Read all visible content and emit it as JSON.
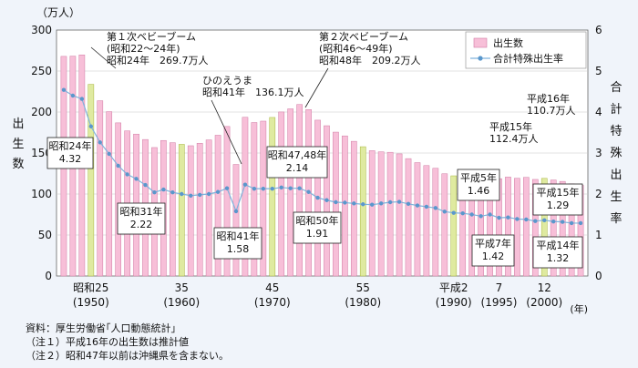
{
  "chart_data": {
    "type": "bar+line",
    "unit_left": "（万人）",
    "ylabel_left": "出生数",
    "ylabel_right": "合計特殊出生率",
    "ylim_left": [
      0,
      300
    ],
    "ylim_right": [
      0,
      6
    ],
    "yticks_left": [
      "0",
      "50",
      "100",
      "150",
      "200",
      "250",
      "300"
    ],
    "yticks_right": [
      "0",
      "1",
      "2",
      "3",
      "4",
      "5",
      "6"
    ],
    "x_unit": "(年)",
    "xtick_labels": [
      {
        "index": 3,
        "top": "昭和25",
        "bottom": "(1950)"
      },
      {
        "index": 13,
        "top": "35",
        "bottom": "(1960)"
      },
      {
        "index": 23,
        "top": "45",
        "bottom": "(1970)"
      },
      {
        "index": 33,
        "top": "55",
        "bottom": "(1980)"
      },
      {
        "index": 43,
        "top": "平成2",
        "bottom": "(1990)"
      },
      {
        "index": 48,
        "top": "7",
        "bottom": "(1995)"
      },
      {
        "index": 53,
        "top": "12",
        "bottom": "(2000)"
      }
    ],
    "x": [
      1947,
      1948,
      1949,
      1950,
      1951,
      1952,
      1953,
      1954,
      1955,
      1956,
      1957,
      1958,
      1959,
      1960,
      1961,
      1962,
      1963,
      1964,
      1965,
      1966,
      1967,
      1968,
      1969,
      1970,
      1971,
      1972,
      1973,
      1974,
      1975,
      1976,
      1977,
      1978,
      1979,
      1980,
      1981,
      1982,
      1983,
      1984,
      1985,
      1986,
      1987,
      1988,
      1989,
      1990,
      1991,
      1992,
      1993,
      1994,
      1995,
      1996,
      1997,
      1998,
      1999,
      2000,
      2001,
      2002,
      2003,
      2004
    ],
    "series": [
      {
        "name": "出生数",
        "kind": "bar",
        "color": "#f7bfd8",
        "decade_color": "#dfeaa0",
        "values": [
          267.9,
          268.2,
          269.7,
          233.8,
          213.8,
          200.5,
          186.8,
          177.0,
          173.1,
          166.5,
          156.7,
          165.3,
          162.6,
          160.6,
          158.9,
          161.9,
          166.0,
          171.7,
          182.4,
          136.1,
          193.6,
          187.2,
          188.9,
          193.4,
          200.1,
          203.9,
          209.2,
          203.0,
          190.1,
          183.3,
          175.5,
          170.9,
          164.3,
          157.7,
          152.9,
          151.5,
          150.9,
          149.0,
          143.2,
          138.3,
          134.7,
          131.4,
          124.7,
          122.2,
          122.3,
          120.9,
          118.8,
          123.8,
          118.7,
          120.7,
          119.2,
          120.3,
          117.8,
          119.1,
          117.1,
          115.4,
          112.4,
          110.7
        ],
        "decade_indices": [
          3,
          13,
          23,
          33,
          43,
          53
        ]
      },
      {
        "name": "合計特殊出生率",
        "kind": "line",
        "color": "#7fb2dc",
        "values": [
          4.54,
          4.4,
          4.32,
          3.65,
          3.26,
          2.98,
          2.69,
          2.48,
          2.37,
          2.22,
          2.04,
          2.11,
          2.04,
          2.0,
          1.96,
          1.98,
          2.0,
          2.05,
          2.14,
          1.58,
          2.23,
          2.13,
          2.13,
          2.13,
          2.16,
          2.14,
          2.14,
          2.05,
          1.91,
          1.85,
          1.8,
          1.79,
          1.77,
          1.75,
          1.74,
          1.77,
          1.8,
          1.81,
          1.76,
          1.72,
          1.69,
          1.66,
          1.57,
          1.54,
          1.53,
          1.5,
          1.46,
          1.5,
          1.42,
          1.43,
          1.39,
          1.38,
          1.34,
          1.36,
          1.33,
          1.32,
          1.29,
          1.29
        ]
      }
    ],
    "annotations": [
      {
        "lines": [
          "第１次ベビーブーム",
          "(昭和22〜24年)",
          "昭和24年　269.7万人"
        ],
        "boxed": false
      },
      {
        "lines": [
          "第２次ベビーブーム",
          "(昭和46〜49年)",
          "昭和48年　209.2万人"
        ],
        "boxed": false
      },
      {
        "lines": [
          "ひのえうま",
          "昭和41年　136.1万人"
        ],
        "boxed": false
      },
      {
        "lines": [
          "平成16年",
          "110.7万人"
        ],
        "boxed": false
      },
      {
        "lines": [
          "平成15年",
          "112.4万人"
        ],
        "boxed": false
      },
      {
        "lines": [
          "昭和24年",
          "4.32"
        ],
        "boxed": true
      },
      {
        "lines": [
          "昭和31年",
          "2.22"
        ],
        "boxed": true
      },
      {
        "lines": [
          "昭和41年",
          "1.58"
        ],
        "boxed": true
      },
      {
        "lines": [
          "昭和47,48年",
          "2.14"
        ],
        "boxed": true
      },
      {
        "lines": [
          "昭和50年",
          "1.91"
        ],
        "boxed": true
      },
      {
        "lines": [
          "平成5年",
          "1.46"
        ],
        "boxed": true
      },
      {
        "lines": [
          "平成7年",
          "1.42"
        ],
        "boxed": true
      },
      {
        "lines": [
          "平成15年",
          "1.29"
        ],
        "boxed": true
      },
      {
        "lines": [
          "平成14年",
          "1.32"
        ],
        "boxed": true
      }
    ]
  },
  "footer": {
    "source": "資料：厚生労働省｢人口動態統計｣",
    "note1": "（注１）平成16年の出生数は推計値",
    "note2": "（注２）昭和47年以前は沖縄県を含まない。"
  }
}
